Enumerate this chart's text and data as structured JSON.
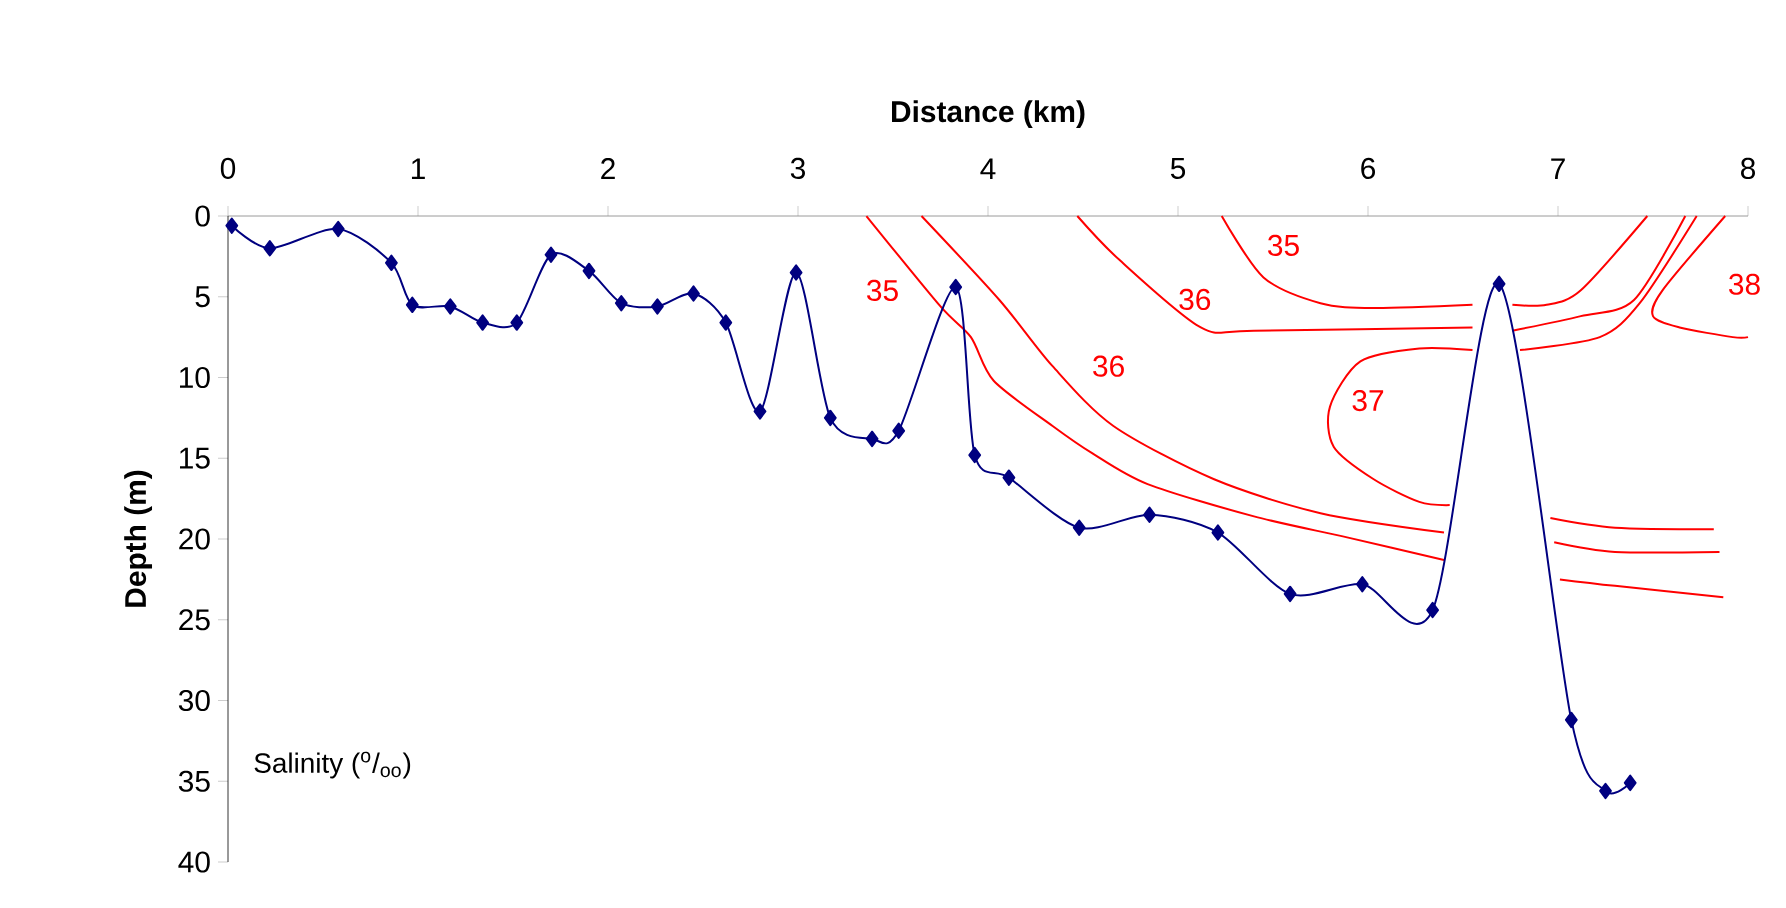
{
  "chart_data": {
    "type": "line",
    "xlabel": "Distance (km)",
    "ylabel": "Depth (m)",
    "xlim": [
      0,
      8
    ],
    "ylim": [
      40,
      0
    ],
    "xticks": [
      0,
      1,
      2,
      3,
      4,
      5,
      6,
      7,
      8
    ],
    "yticks": [
      0,
      5,
      10,
      15,
      20,
      25,
      30,
      35,
      40
    ],
    "series": [
      {
        "color": "#000080",
        "marker": "diamond",
        "x": [
          0.02,
          0.22,
          0.58,
          0.86,
          0.97,
          1.17,
          1.34,
          1.52,
          1.7,
          1.9,
          2.07,
          2.26,
          2.45,
          2.62,
          2.8,
          2.99,
          3.17,
          3.39,
          3.53,
          3.83,
          3.93,
          4.11,
          4.48,
          4.85,
          5.21,
          5.59,
          5.97,
          6.34,
          6.69,
          7.07,
          7.25,
          7.38
        ],
        "values": [
          0.6,
          2.0,
          0.8,
          2.9,
          5.5,
          5.6,
          6.6,
          6.6,
          2.4,
          3.4,
          5.4,
          5.6,
          4.8,
          6.6,
          12.1,
          3.5,
          12.5,
          13.8,
          13.3,
          4.4,
          14.8,
          16.2,
          19.3,
          18.5,
          19.6,
          23.4,
          22.8,
          24.4,
          4.2,
          31.2,
          35.6,
          35.1
        ]
      },
      {
        "name": "35",
        "color": "#ff0000",
        "marker": "none",
        "x": [
          3.36,
          3.75,
          3.91,
          4.03,
          4.34,
          4.55,
          4.84,
          5.4,
          5.89,
          6.4
        ],
        "values": [
          0,
          5.6,
          7.5,
          10.2,
          13.0,
          14.7,
          16.6,
          18.6,
          19.9,
          21.3
        ]
      },
      {
        "name": "36",
        "color": "#ff0000",
        "marker": "none",
        "x": [
          3.65,
          4.06,
          4.34,
          4.66,
          5.19,
          5.75,
          6.4
        ],
        "values": [
          0,
          5.2,
          9.3,
          13.0,
          16.3,
          18.4,
          19.6
        ]
      },
      {
        "name": "36",
        "color": "#ff0000",
        "marker": "none",
        "x": [
          4.47,
          4.69,
          5.12,
          5.4,
          6.55
        ],
        "values": [
          0,
          2.7,
          6.9,
          7.1,
          6.9
        ]
      },
      {
        "name": "35",
        "color": "#ff0000",
        "marker": "none",
        "x": [
          5.23,
          5.45,
          5.75,
          6.03,
          6.55
        ],
        "values": [
          0,
          3.8,
          5.4,
          5.7,
          5.5
        ]
      },
      {
        "name": "37",
        "color": "#ff0000",
        "marker": "none",
        "x": [
          6.55,
          6.27,
          5.96,
          5.8,
          5.82,
          6.03,
          6.27,
          6.43
        ],
        "values": [
          8.3,
          8.2,
          9.0,
          11.8,
          14.3,
          16.3,
          17.7,
          17.9
        ]
      },
      {
        "color": "#ff0000",
        "marker": "none",
        "x": [
          6.76,
          6.94,
          7.12,
          7.47
        ],
        "values": [
          5.5,
          5.5,
          4.6,
          0
        ]
      },
      {
        "color": "#ff0000",
        "marker": "none",
        "x": [
          6.76,
          7.12,
          7.4,
          7.67
        ],
        "values": [
          7.1,
          6.2,
          5.2,
          0
        ]
      },
      {
        "color": "#ff0000",
        "marker": "none",
        "x": [
          6.8,
          7.22,
          7.43,
          7.73
        ],
        "values": [
          8.3,
          7.5,
          5.4,
          0
        ]
      },
      {
        "name": "38",
        "color": "#ff0000",
        "marker": "none",
        "x": [
          7.88,
          7.55,
          7.5,
          7.64,
          7.92,
          8.0
        ],
        "values": [
          0,
          4.6,
          6.2,
          6.9,
          7.5,
          7.5
        ]
      },
      {
        "color": "#ff0000",
        "marker": "none",
        "x": [
          6.96,
          7.3,
          7.82
        ],
        "values": [
          18.7,
          19.3,
          19.4
        ]
      },
      {
        "color": "#ff0000",
        "marker": "none",
        "x": [
          6.98,
          7.3,
          7.85
        ],
        "values": [
          20.2,
          20.8,
          20.8
        ]
      },
      {
        "color": "#ff0000",
        "marker": "none",
        "x": [
          7.01,
          7.3,
          7.87
        ],
        "values": [
          22.5,
          22.9,
          23.6
        ]
      }
    ],
    "annotations": [
      "Salinity ($^{o}$/$_{oo}$)"
    ]
  }
}
